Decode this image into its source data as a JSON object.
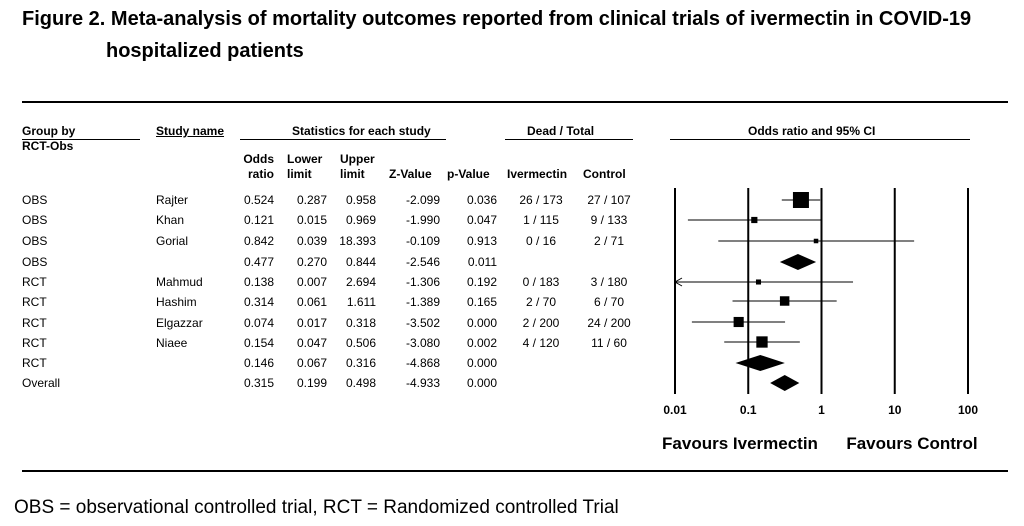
{
  "title": {
    "line1": "Figure 2.  Meta-analysis of mortality outcomes reported from clinical trials of ivermectin in COVID-19",
    "line2": "hospitalized patients"
  },
  "headers": {
    "group_by": "Group by",
    "rct_obs": "RCT-Obs",
    "study_name": "Study name",
    "stats_group": "Statistics for each study",
    "dead_total": "Dead / Total",
    "or_ci": "Odds ratio and 95% CI",
    "odds_ratio_1": "Odds",
    "odds_ratio_2": "ratio",
    "lower_1": "Lower",
    "lower_2": "limit",
    "upper_1": "Upper",
    "upper_2": "limit",
    "z_value": "Z-Value",
    "p_value": "p-Value",
    "ivermectin": "Ivermectin",
    "control": "Control"
  },
  "rows": [
    {
      "group": "OBS",
      "study": "Rajter",
      "or": "0.524",
      "lower": "0.287",
      "upper": "0.958",
      "z": "-2.099",
      "p": "0.036",
      "ivm": "26 / 173",
      "ctrl": "27 / 107"
    },
    {
      "group": "OBS",
      "study": "Khan",
      "or": "0.121",
      "lower": "0.015",
      "upper": "0.969",
      "z": "-1.990",
      "p": "0.047",
      "ivm": "1 / 115",
      "ctrl": "9 / 133"
    },
    {
      "group": "OBS",
      "study": "Gorial",
      "or": "0.842",
      "lower": "0.039",
      "upper": "18.393",
      "z": "-0.109",
      "p": "0.913",
      "ivm": "0 / 16",
      "ctrl": "2 / 71"
    },
    {
      "group": "OBS",
      "study": "",
      "or": "0.477",
      "lower": "0.270",
      "upper": "0.844",
      "z": "-2.546",
      "p": "0.011",
      "ivm": "",
      "ctrl": ""
    },
    {
      "group": "RCT",
      "study": "Mahmud",
      "or": "0.138",
      "lower": "0.007",
      "upper": "2.694",
      "z": "-1.306",
      "p": "0.192",
      "ivm": "0 / 183",
      "ctrl": "3 / 180"
    },
    {
      "group": "RCT",
      "study": "Hashim",
      "or": "0.314",
      "lower": "0.061",
      "upper": "1.611",
      "z": "-1.389",
      "p": "0.165",
      "ivm": "2 / 70",
      "ctrl": "6 / 70"
    },
    {
      "group": "RCT",
      "study": "Elgazzar",
      "or": "0.074",
      "lower": "0.017",
      "upper": "0.318",
      "z": "-3.502",
      "p": "0.000",
      "ivm": "2 / 200",
      "ctrl": "24 / 200"
    },
    {
      "group": "RCT",
      "study": "Niaee",
      "or": "0.154",
      "lower": "0.047",
      "upper": "0.506",
      "z": "-3.080",
      "p": "0.002",
      "ivm": "4 / 120",
      "ctrl": "11 / 60"
    },
    {
      "group": "RCT",
      "study": "",
      "or": "0.146",
      "lower": "0.067",
      "upper": "0.316",
      "z": "-4.868",
      "p": "0.000",
      "ivm": "",
      "ctrl": ""
    },
    {
      "group": "Overall",
      "study": "",
      "or": "0.315",
      "lower": "0.199",
      "upper": "0.498",
      "z": "-4.933",
      "p": "0.000",
      "ivm": "",
      "ctrl": ""
    }
  ],
  "footer": "OBS = observational controlled trial, RCT = Randomized controlled Trial",
  "chart_data": {
    "type": "forest",
    "title": "Odds ratio and 95% CI",
    "scale": "log",
    "xlim": [
      0.01,
      100
    ],
    "ticks": [
      {
        "value": 0.01,
        "label": "0.01"
      },
      {
        "value": 0.1,
        "label": "0.1"
      },
      {
        "value": 1,
        "label": "1"
      },
      {
        "value": 10,
        "label": "10"
      },
      {
        "value": 100,
        "label": "100"
      }
    ],
    "favours_left": "Favours Ivermectin",
    "favours_right": "Favours Control",
    "studies": [
      {
        "kind": "study",
        "or": 0.524,
        "lower": 0.287,
        "upper": 0.958,
        "weight": 1.0
      },
      {
        "kind": "study",
        "or": 0.121,
        "lower": 0.015,
        "upper": 0.969,
        "weight": 0.15
      },
      {
        "kind": "study",
        "or": 0.842,
        "lower": 0.039,
        "upper": 18.393,
        "weight": 0.08
      },
      {
        "kind": "summary",
        "or": 0.477,
        "lower": 0.27,
        "upper": 0.844
      },
      {
        "kind": "study",
        "or": 0.138,
        "lower": 0.007,
        "upper": 2.694,
        "weight": 0.1,
        "arrow_left": true
      },
      {
        "kind": "study",
        "or": 0.314,
        "lower": 0.061,
        "upper": 1.611,
        "weight": 0.35
      },
      {
        "kind": "study",
        "or": 0.074,
        "lower": 0.017,
        "upper": 0.318,
        "weight": 0.4
      },
      {
        "kind": "study",
        "or": 0.154,
        "lower": 0.047,
        "upper": 0.506,
        "weight": 0.5
      },
      {
        "kind": "summary",
        "or": 0.146,
        "lower": 0.067,
        "upper": 0.316
      },
      {
        "kind": "summary",
        "or": 0.315,
        "lower": 0.199,
        "upper": 0.498
      }
    ]
  }
}
